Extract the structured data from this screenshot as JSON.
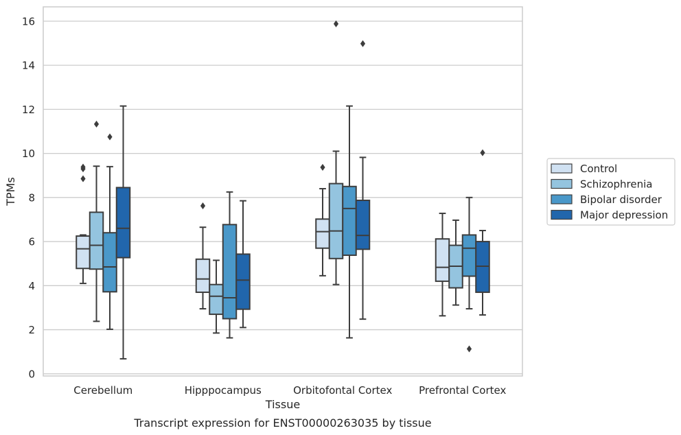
{
  "chart_data": {
    "type": "box",
    "title": "Transcript expression for ENST00000263035 by tissue",
    "xlabel": "Tissue",
    "ylabel": "TPMs",
    "ylim": [
      -0.1,
      16.65
    ],
    "yticks": [
      0,
      2,
      4,
      6,
      8,
      10,
      12,
      14,
      16
    ],
    "grid": "horizontal",
    "legend_placement": "center-right-outside",
    "categories": [
      "Cerebellum",
      "Hipppocampus",
      "Orbitofontal Cortex",
      "Prefrontal Cortex"
    ],
    "series": [
      {
        "name": "Control",
        "color": "#d0e1f2",
        "boxes": [
          {
            "whislo": 4.1,
            "q1": 4.78,
            "med": 5.67,
            "q3": 6.25,
            "whishi": 6.3,
            "fliers": [
              8.85,
              9.3,
              9.38
            ]
          },
          {
            "whislo": 2.95,
            "q1": 3.7,
            "med": 4.3,
            "q3": 5.2,
            "whishi": 6.65,
            "fliers": [
              7.62
            ]
          },
          {
            "whislo": 4.45,
            "q1": 5.7,
            "med": 6.45,
            "q3": 7.02,
            "whishi": 8.4,
            "fliers": [
              9.37
            ]
          },
          {
            "whislo": 2.63,
            "q1": 4.2,
            "med": 4.83,
            "q3": 6.12,
            "whishi": 7.28,
            "fliers": []
          }
        ]
      },
      {
        "name": "Schizophrenia",
        "color": "#94c4df",
        "boxes": [
          {
            "whislo": 2.38,
            "q1": 4.75,
            "med": 5.83,
            "q3": 7.33,
            "whishi": 9.42,
            "fliers": [
              11.33
            ]
          },
          {
            "whislo": 1.85,
            "q1": 2.7,
            "med": 3.52,
            "q3": 4.05,
            "whishi": 5.15,
            "fliers": []
          },
          {
            "whislo": 4.05,
            "q1": 5.23,
            "med": 6.48,
            "q3": 8.63,
            "whishi": 10.1,
            "fliers": [
              15.88
            ]
          },
          {
            "whislo": 3.12,
            "q1": 3.9,
            "med": 4.88,
            "q3": 5.83,
            "whishi": 6.97,
            "fliers": []
          }
        ]
      },
      {
        "name": "Bipolar disorder",
        "color": "#4a98c9",
        "boxes": [
          {
            "whislo": 2.02,
            "q1": 3.72,
            "med": 4.85,
            "q3": 6.4,
            "whishi": 9.4,
            "fliers": [
              10.75
            ]
          },
          {
            "whislo": 1.63,
            "q1": 2.5,
            "med": 3.45,
            "q3": 6.77,
            "whishi": 8.25,
            "fliers": []
          },
          {
            "whislo": 1.63,
            "q1": 5.38,
            "med": 7.5,
            "q3": 8.5,
            "whishi": 12.15,
            "fliers": []
          },
          {
            "whislo": 2.95,
            "q1": 4.43,
            "med": 5.7,
            "q3": 6.3,
            "whishi": 8.0,
            "fliers": [
              1.13
            ]
          }
        ]
      },
      {
        "name": "Major depression",
        "color": "#2166ac",
        "boxes": [
          {
            "whislo": 0.68,
            "q1": 5.27,
            "med": 6.6,
            "q3": 8.45,
            "whishi": 12.15,
            "fliers": []
          },
          {
            "whislo": 2.1,
            "q1": 2.93,
            "med": 4.25,
            "q3": 5.43,
            "whishi": 7.85,
            "fliers": []
          },
          {
            "whislo": 2.48,
            "q1": 5.65,
            "med": 6.28,
            "q3": 7.87,
            "whishi": 9.82,
            "fliers": [
              14.98
            ]
          },
          {
            "whislo": 2.67,
            "q1": 3.7,
            "med": 4.88,
            "q3": 6.0,
            "whishi": 6.5,
            "fliers": [
              10.03
            ]
          }
        ]
      }
    ]
  }
}
